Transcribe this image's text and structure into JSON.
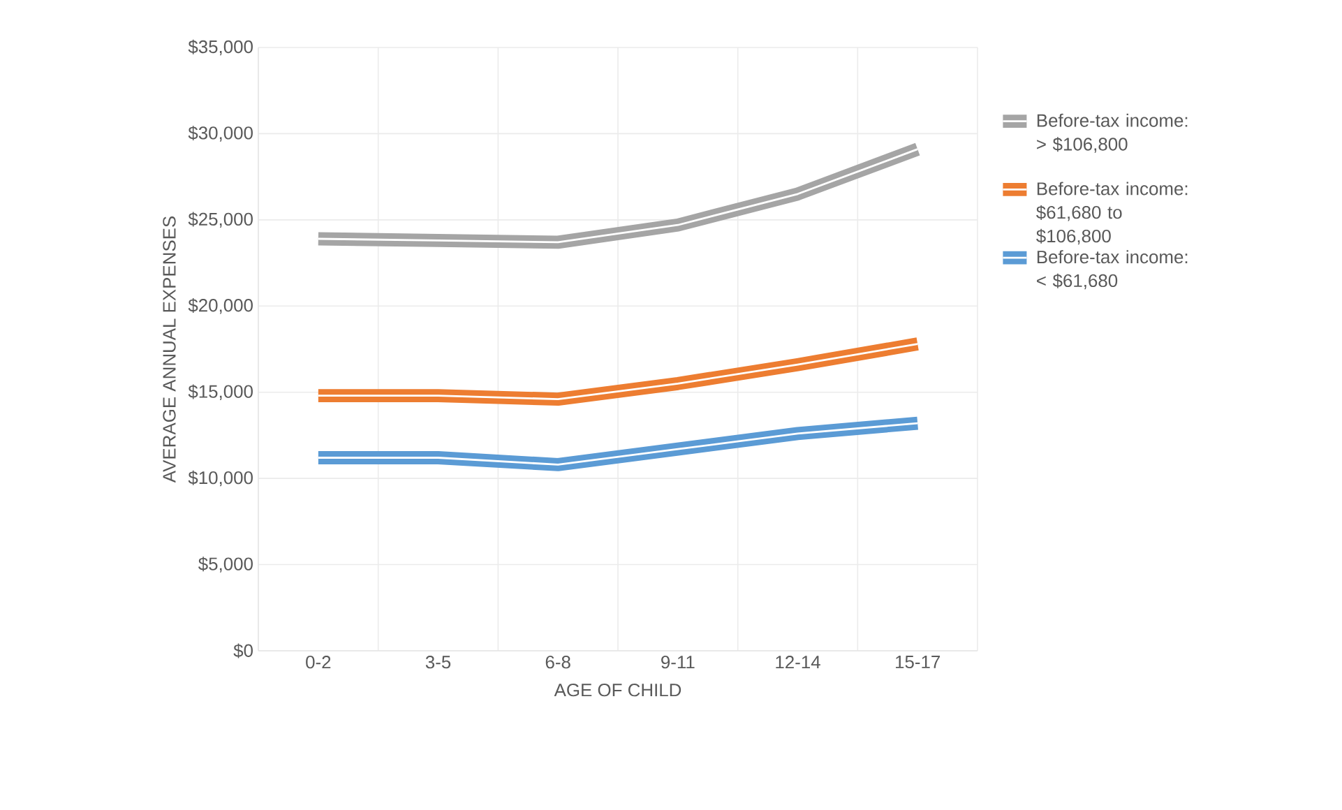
{
  "chart_data": {
    "type": "line",
    "xlabel": "AGE OF CHILD",
    "ylabel": "AVERAGE ANNUAL EXPENSES",
    "categories": [
      "0-2",
      "3-5",
      "6-8",
      "9-11",
      "12-14",
      "15-17"
    ],
    "series": [
      {
        "name": "Before-tax income: > $106,800",
        "color": "#a5a5a5",
        "values": [
          23900,
          23800,
          23700,
          24700,
          26500,
          29100
        ]
      },
      {
        "name": "Before-tax income: $61,680 to $106,800",
        "color": "#ed7d31",
        "values": [
          14800,
          14800,
          14600,
          15500,
          16600,
          17800
        ]
      },
      {
        "name": "Before-tax income: < $61,680",
        "color": "#5b9bd5",
        "values": [
          11200,
          11200,
          10800,
          11700,
          12600,
          13200
        ]
      }
    ],
    "ylim": [
      0,
      35000
    ],
    "yticks": [
      {
        "value": 0,
        "label": "$0"
      },
      {
        "value": 5000,
        "label": "$5,000"
      },
      {
        "value": 10000,
        "label": "$10,000"
      },
      {
        "value": 15000,
        "label": "$15,000"
      },
      {
        "value": 20000,
        "label": "$20,000"
      },
      {
        "value": 25000,
        "label": "$25,000"
      },
      {
        "value": 30000,
        "label": "$30,000"
      },
      {
        "value": 35000,
        "label": "$35,000"
      }
    ],
    "grid": true,
    "legend": "right"
  }
}
